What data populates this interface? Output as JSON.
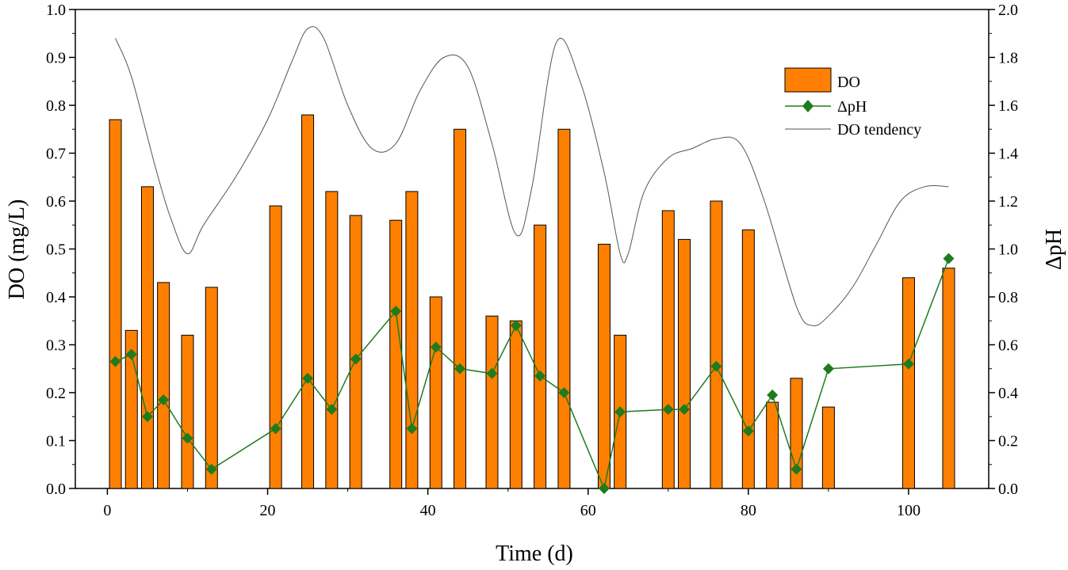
{
  "chart_data": {
    "type": "bar",
    "xlabel": "Time (d)",
    "ylabel_left": "DO (mg/L)",
    "ylabel_right": "ΔpH",
    "xlim": [
      -4,
      110
    ],
    "ylim_left": [
      0,
      1.0
    ],
    "ylim_right": [
      0,
      2.0
    ],
    "x_ticks": [
      0,
      20,
      40,
      60,
      80,
      100
    ],
    "y_left_ticks": [
      "0.0",
      "0.1",
      "0.2",
      "0.3",
      "0.4",
      "0.5",
      "0.6",
      "0.7",
      "0.8",
      "0.9",
      "1.0"
    ],
    "y_right_ticks": [
      "0.0",
      "0.2",
      "0.4",
      "0.6",
      "0.8",
      "1.0",
      "1.2",
      "1.4",
      "1.6",
      "1.8",
      "2.0"
    ],
    "legend_position": "top-right",
    "grid": false,
    "series": [
      {
        "name": "DO",
        "kind": "bar",
        "axis": "left",
        "color": "#FF8000",
        "x": [
          1,
          3,
          5,
          7,
          10,
          13,
          21,
          25,
          28,
          31,
          36,
          38,
          41,
          44,
          48,
          51,
          54,
          57,
          62,
          64,
          70,
          72,
          76,
          80,
          83,
          86,
          90,
          100,
          105
        ],
        "values": [
          0.77,
          0.33,
          0.63,
          0.43,
          0.32,
          0.42,
          0.59,
          0.78,
          0.62,
          0.57,
          0.56,
          0.62,
          0.4,
          0.75,
          0.36,
          0.35,
          0.55,
          0.75,
          0.51,
          0.32,
          0.58,
          0.52,
          0.6,
          0.54,
          0.18,
          0.23,
          0.17,
          0.44,
          0.46
        ]
      },
      {
        "name": "ΔpH",
        "kind": "line-marker",
        "axis": "right",
        "color": "#1E7B1E",
        "x": [
          1,
          3,
          5,
          7,
          10,
          13,
          21,
          25,
          28,
          31,
          36,
          38,
          41,
          44,
          48,
          51,
          54,
          57,
          62,
          64,
          70,
          72,
          76,
          80,
          83,
          86,
          90,
          100,
          105
        ],
        "values": [
          0.53,
          0.56,
          0.3,
          0.37,
          0.21,
          0.08,
          0.25,
          0.46,
          0.33,
          0.54,
          0.74,
          0.25,
          0.59,
          0.5,
          0.48,
          0.68,
          0.47,
          0.4,
          0.0,
          0.32,
          0.33,
          0.33,
          0.51,
          0.24,
          0.39,
          0.08,
          0.5,
          0.52,
          0.96
        ]
      },
      {
        "name": "DO tendency",
        "kind": "smooth-line",
        "axis": "left",
        "color": "#555555",
        "x": [
          1,
          3,
          6,
          8,
          10,
          12,
          16,
          20,
          23,
          25,
          27,
          30,
          33,
          36,
          39,
          42,
          45,
          48,
          51,
          53,
          56,
          59,
          62,
          64,
          65,
          67,
          70,
          73,
          76,
          79,
          82,
          86,
          88,
          90,
          93,
          96,
          99,
          102,
          105
        ],
        "values": [
          0.94,
          0.86,
          0.67,
          0.56,
          0.49,
          0.55,
          0.65,
          0.77,
          0.89,
          0.96,
          0.94,
          0.8,
          0.71,
          0.72,
          0.83,
          0.9,
          0.88,
          0.72,
          0.53,
          0.63,
          0.93,
          0.85,
          0.66,
          0.49,
          0.49,
          0.62,
          0.69,
          0.71,
          0.73,
          0.72,
          0.6,
          0.38,
          0.34,
          0.36,
          0.42,
          0.51,
          0.6,
          0.63,
          0.63
        ]
      }
    ]
  }
}
